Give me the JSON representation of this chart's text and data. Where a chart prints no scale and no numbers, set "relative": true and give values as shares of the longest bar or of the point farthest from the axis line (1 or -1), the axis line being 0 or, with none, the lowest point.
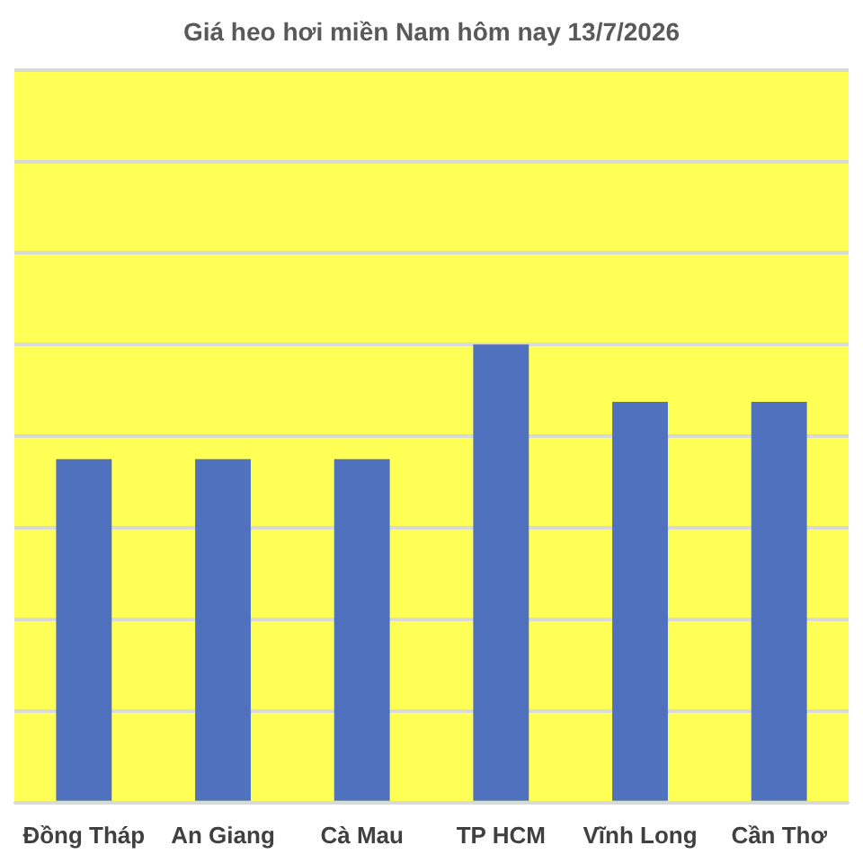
{
  "chart_data": {
    "type": "bar",
    "title": "Giá heo hơi miền Nam hôm nay 13/7/2026",
    "categories": [
      "Đồng Tháp",
      "An Giang",
      "Cà Mau",
      "TP HCM",
      "Vĩnh Long",
      "Cần Thơ"
    ],
    "values": [
      0.75,
      0.75,
      0.75,
      1,
      0.875,
      0.875
    ],
    "color": "#4f71be",
    "relative": true,
    "grid": "y",
    "legend": false
  }
}
